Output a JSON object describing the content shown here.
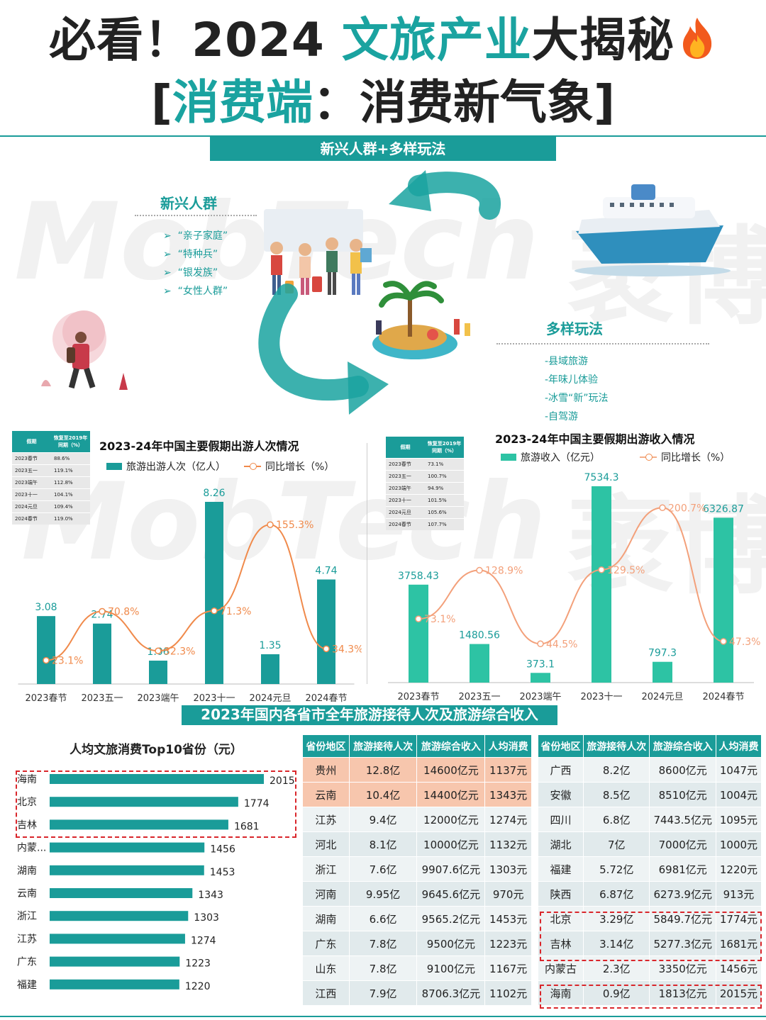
{
  "header": {
    "title_prefix": "必看！2024",
    "title_highlight": "文旅产业",
    "title_suffix": "大揭秘",
    "subtitle_open": "[",
    "subtitle_highlight": "消费端",
    "subtitle_rest": "：消费新气象]",
    "banner": "新兴人群+多样玩法"
  },
  "emerging": {
    "heading": "新兴人群",
    "items": [
      "“亲子家庭”",
      "“特种兵”",
      "“银发族”",
      "“女性人群”"
    ]
  },
  "play": {
    "heading": "多样玩法",
    "items": [
      "-县域旅游",
      "-年味儿体验",
      "-冰雪“新”玩法",
      "-自驾游"
    ]
  },
  "watermark": {
    "left": "MobTech",
    "right": "袤博"
  },
  "colors": {
    "teal": "#1a9c99",
    "teal_light": "#2dc3a4",
    "orange": "#f08a4b",
    "red": "#d9262b"
  },
  "recovery_table_1": {
    "headers": [
      "假期",
      "恢复至2019年同期（%）"
    ],
    "rows": [
      [
        "2023春节",
        "88.6%"
      ],
      [
        "2023五一",
        "119.1%"
      ],
      [
        "2023端午",
        "112.8%"
      ],
      [
        "2023十一",
        "104.1%"
      ],
      [
        "2024元旦",
        "109.4%"
      ],
      [
        "2024春节",
        "119.0%"
      ]
    ]
  },
  "recovery_table_2": {
    "headers": [
      "假期",
      "恢复至2019年同期（%）"
    ],
    "rows": [
      [
        "2023春节",
        "73.1%"
      ],
      [
        "2023五一",
        "100.7%"
      ],
      [
        "2023端午",
        "94.9%"
      ],
      [
        "2023十一",
        "101.5%"
      ],
      [
        "2024元旦",
        "105.6%"
      ],
      [
        "2024春节",
        "107.7%"
      ]
    ]
  },
  "chart_data": [
    {
      "type": "bar",
      "title": "2023-24年中国主要假期出游人次情况",
      "categories": [
        "2023春节",
        "2023五一",
        "2023端午",
        "2023十一",
        "2024元旦",
        "2024春节"
      ],
      "series": [
        {
          "name": "旅游出游人次（亿人）",
          "type": "bar",
          "values": [
            3.08,
            2.74,
            1.06,
            8.26,
            1.35,
            4.74
          ]
        },
        {
          "name": "同比增长（%）",
          "type": "line",
          "values": [
            23.1,
            70.8,
            32.3,
            71.3,
            155.3,
            34.3
          ],
          "labels": [
            "23.1%",
            "70.8%",
            "32.3%",
            "71.3%",
            "155.3%",
            "34.3%"
          ]
        }
      ]
    },
    {
      "type": "bar",
      "title": "2023-24年中国主要假期出游收入情况",
      "categories": [
        "2023春节",
        "2023五一",
        "2023端午",
        "2023十一",
        "2024元旦",
        "2024春节"
      ],
      "series": [
        {
          "name": "旅游收入（亿元）",
          "type": "bar",
          "values": [
            3758.43,
            1480.56,
            373.1,
            7534.3,
            797.3,
            6326.87
          ]
        },
        {
          "name": "同比增长（%）",
          "type": "line",
          "values": [
            73.1,
            128.9,
            44.5,
            129.5,
            200.7,
            47.3
          ],
          "labels": [
            "73.1%",
            "128.9%",
            "44.5%",
            "129.5%",
            "200.7%",
            "47.3%"
          ]
        }
      ]
    },
    {
      "type": "bar",
      "orientation": "horizontal",
      "title": "人均文旅消费Top10省份（元）",
      "categories": [
        "海南",
        "北京",
        "吉林",
        "内蒙...",
        "湖南",
        "云南",
        "浙江",
        "江苏",
        "广东",
        "福建"
      ],
      "values": [
        2015,
        1774,
        1681,
        1456,
        1453,
        1343,
        1303,
        1274,
        1223,
        1220
      ]
    },
    {
      "type": "table",
      "title": "2023年国内各省市全年旅游接待人次及旅游综合收入",
      "headers": [
        "省份地区",
        "旅游接待人次",
        "旅游综合收入",
        "人均消费"
      ],
      "rows_left": [
        [
          "贵州",
          "12.8亿",
          "14600亿元",
          "1137元"
        ],
        [
          "云南",
          "10.4亿",
          "14400亿元",
          "1343元"
        ],
        [
          "江苏",
          "9.4亿",
          "12000亿元",
          "1274元"
        ],
        [
          "河北",
          "8.1亿",
          "10000亿元",
          "1132元"
        ],
        [
          "浙江",
          "7.6亿",
          "9907.6亿元",
          "1303元"
        ],
        [
          "河南",
          "9.95亿",
          "9645.6亿元",
          "970元"
        ],
        [
          "湖南",
          "6.6亿",
          "9565.2亿元",
          "1453元"
        ],
        [
          "广东",
          "7.8亿",
          "9500亿元",
          "1223元"
        ],
        [
          "山东",
          "7.8亿",
          "9100亿元",
          "1167元"
        ],
        [
          "江西",
          "7.9亿",
          "8706.3亿元",
          "1102元"
        ]
      ],
      "rows_right": [
        [
          "广西",
          "8.2亿",
          "8600亿元",
          "1047元"
        ],
        [
          "安徽",
          "8.5亿",
          "8510亿元",
          "1004元"
        ],
        [
          "四川",
          "6.8亿",
          "7443.5亿元",
          "1095元"
        ],
        [
          "湖北",
          "7亿",
          "7000亿元",
          "1000元"
        ],
        [
          "福建",
          "5.72亿",
          "6981亿元",
          "1220元"
        ],
        [
          "陕西",
          "6.87亿",
          "6273.9亿元",
          "913元"
        ],
        [
          "北京",
          "3.29亿",
          "5849.7亿元",
          "1774元"
        ],
        [
          "吉林",
          "3.14亿",
          "5277.3亿元",
          "1681元"
        ],
        [
          "内蒙古",
          "2.3亿",
          "3350亿元",
          "1456元"
        ],
        [
          "海南",
          "0.9亿",
          "1813亿元",
          "2015元"
        ]
      ]
    }
  ]
}
